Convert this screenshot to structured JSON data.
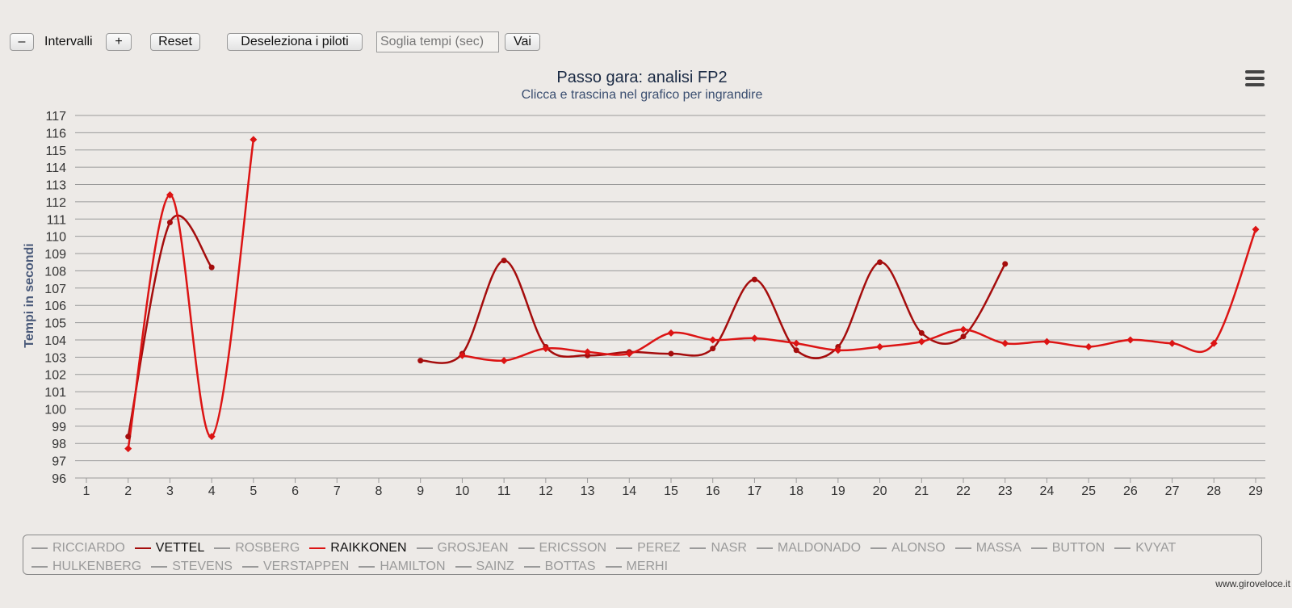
{
  "toolbar": {
    "minus_label": "–",
    "intervals_label": "Intervalli",
    "plus_label": "+",
    "reset_label": "Reset",
    "deselect_label": "Deseleziona i piloti",
    "threshold_placeholder": "Soglia tempi (sec)",
    "go_label": "Vai"
  },
  "credit": "www.giroveloce.it",
  "colors": {
    "background": "#edeae7",
    "grid": "#9a9a9a",
    "vettel": "#a50d0d",
    "raikkonen": "#dc1414",
    "legend_inactive": "#9a9a9a",
    "title": "#1a2a44",
    "axis_title": "#4a5a7a"
  },
  "legend": [
    {
      "name": "RICCIARDO",
      "active": false
    },
    {
      "name": "VETTEL",
      "active": true,
      "color": "#a50d0d"
    },
    {
      "name": "ROSBERG",
      "active": false
    },
    {
      "name": "RAIKKONEN",
      "active": true,
      "color": "#dc1414"
    },
    {
      "name": "GROSJEAN",
      "active": false
    },
    {
      "name": "ERICSSON",
      "active": false
    },
    {
      "name": "PEREZ",
      "active": false
    },
    {
      "name": "NASR",
      "active": false
    },
    {
      "name": "MALDONADO",
      "active": false
    },
    {
      "name": "ALONSO",
      "active": false
    },
    {
      "name": "MASSA",
      "active": false
    },
    {
      "name": "BUTTON",
      "active": false
    },
    {
      "name": "KVYAT",
      "active": false
    },
    {
      "name": "HULKENBERG",
      "active": false
    },
    {
      "name": "STEVENS",
      "active": false
    },
    {
      "name": "VERSTAPPEN",
      "active": false
    },
    {
      "name": "HAMILTON",
      "active": false
    },
    {
      "name": "SAINZ",
      "active": false
    },
    {
      "name": "BOTTAS",
      "active": false
    },
    {
      "name": "MERHI",
      "active": false
    }
  ],
  "chart_data": {
    "type": "line",
    "title": "Passo gara: analisi FP2",
    "subtitle": "Clicca e trascina nel grafico per ingrandire",
    "xlabel": "",
    "ylabel": "Tempi in secondi",
    "xlim": [
      1,
      29
    ],
    "ylim": [
      96,
      117
    ],
    "x_ticks": [
      1,
      2,
      3,
      4,
      5,
      6,
      7,
      8,
      9,
      10,
      11,
      12,
      13,
      14,
      15,
      16,
      17,
      18,
      19,
      20,
      21,
      22,
      23,
      24,
      25,
      26,
      27,
      28,
      29
    ],
    "y_ticks": [
      96,
      97,
      98,
      99,
      100,
      101,
      102,
      103,
      104,
      105,
      106,
      107,
      108,
      109,
      110,
      111,
      112,
      113,
      114,
      115,
      116,
      117
    ],
    "grid": true,
    "legend_position": "bottom",
    "series": [
      {
        "name": "VETTEL",
        "color": "#a50d0d",
        "marker": "circle",
        "segments": [
          [
            [
              2,
              98.4
            ],
            [
              3,
              110.8
            ],
            [
              4,
              108.2
            ]
          ],
          [
            [
              9,
              102.8
            ],
            [
              10,
              103.2
            ],
            [
              11,
              108.6
            ],
            [
              12,
              103.6
            ],
            [
              13,
              103.1
            ],
            [
              14,
              103.3
            ],
            [
              15,
              103.2
            ],
            [
              16,
              103.5
            ],
            [
              17,
              107.5
            ],
            [
              18,
              103.4
            ],
            [
              19,
              103.6
            ],
            [
              20,
              108.5
            ],
            [
              21,
              104.4
            ],
            [
              22,
              104.2
            ],
            [
              23,
              108.4
            ]
          ]
        ]
      },
      {
        "name": "RAIKKONEN",
        "color": "#dc1414",
        "marker": "diamond",
        "segments": [
          [
            [
              2,
              97.7
            ],
            [
              3,
              112.4
            ],
            [
              4,
              98.4
            ],
            [
              5,
              115.6
            ]
          ],
          [
            [
              10,
              103.1
            ],
            [
              11,
              102.8
            ],
            [
              12,
              103.5
            ],
            [
              13,
              103.3
            ],
            [
              14,
              103.2
            ],
            [
              15,
              104.4
            ],
            [
              16,
              104.0
            ],
            [
              17,
              104.1
            ],
            [
              18,
              103.8
            ],
            [
              19,
              103.4
            ],
            [
              20,
              103.6
            ],
            [
              21,
              103.9
            ],
            [
              22,
              104.6
            ],
            [
              23,
              103.8
            ],
            [
              24,
              103.9
            ],
            [
              25,
              103.6
            ],
            [
              26,
              104.0
            ],
            [
              27,
              103.8
            ],
            [
              28,
              103.8
            ],
            [
              29,
              110.4
            ]
          ]
        ]
      }
    ]
  }
}
